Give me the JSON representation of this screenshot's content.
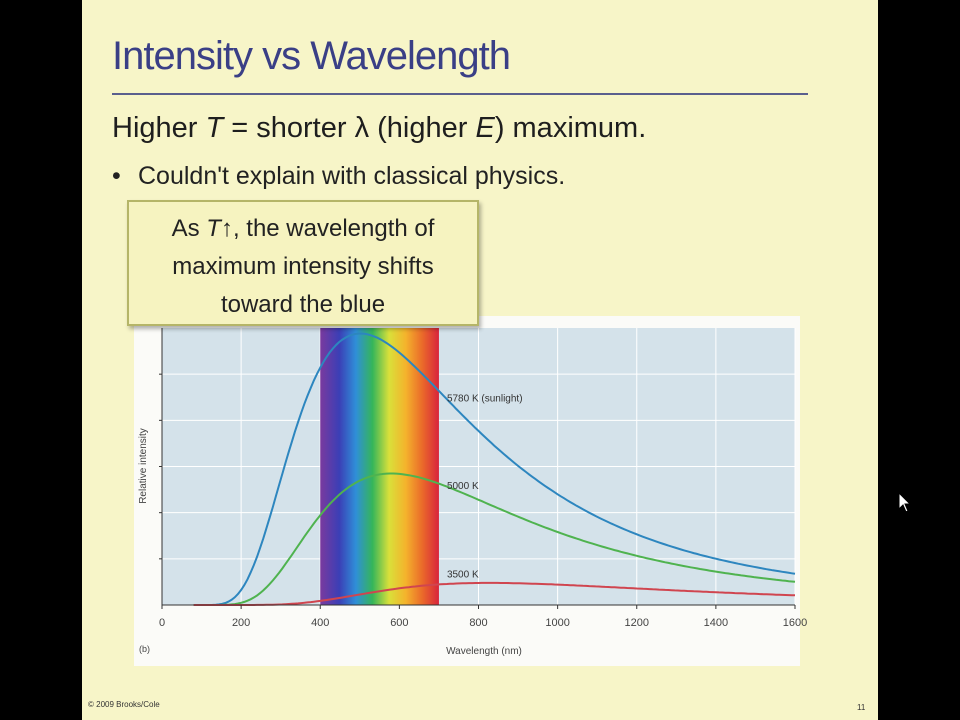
{
  "slide": {
    "title": "Intensity vs Wavelength",
    "subtitle_parts": [
      "Higher ",
      "T",
      " = shorter λ (higher ",
      "E",
      ") maximum."
    ],
    "bullet": "Couldn't explain with classical physics.",
    "callout": {
      "line1_pre": "As ",
      "line1_var": "T",
      "line1_arrow": "↑",
      "line1_post": ", the wavelength of",
      "line2": "maximum intensity shifts",
      "line3": "toward the blue"
    },
    "footer": "© 2009 Brooks/Cole",
    "page_number": "11"
  },
  "chart_data": {
    "type": "line",
    "panel_label": "(b)",
    "xlabel": "Wavelength (nm)",
    "ylabel": "Relative intensity",
    "xlim": [
      0,
      1600
    ],
    "ylim": [
      0,
      1.0
    ],
    "x_ticks": [
      "0",
      "200",
      "400",
      "600",
      "800",
      "1000",
      "1200",
      "1400",
      "1600"
    ],
    "visible_band_nm": [
      400,
      700
    ],
    "grid": true,
    "series": [
      {
        "name": "5780 K (sunlight)",
        "color": "#2d86bf",
        "label_at_nm": 700,
        "label_intensity": 0.745
      },
      {
        "name": "5000 K",
        "color": "#4fb34f",
        "label_at_nm": 700,
        "label_intensity": 0.43
      },
      {
        "name": "3500 K",
        "color": "#d0454f",
        "label_at_nm": 700,
        "label_intensity": 0.11
      }
    ]
  }
}
